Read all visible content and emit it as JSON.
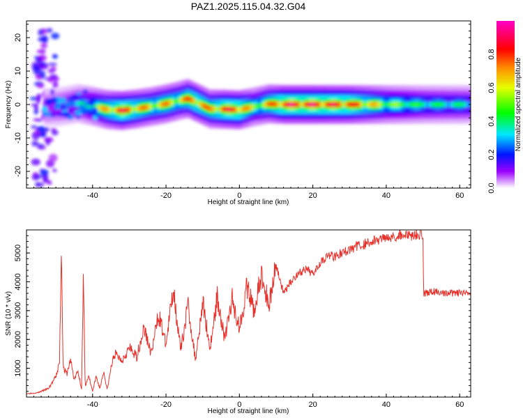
{
  "figure": {
    "title": "PAZ1.2025.115.04.32.G04"
  },
  "chart_data": [
    {
      "type": "heatmap",
      "xlabel": "Height of straight line (km)",
      "ylabel": "Frequency (Hz)",
      "xlim": [
        -58,
        63
      ],
      "ylim": [
        -25,
        25
      ],
      "xticks": [
        -40,
        -20,
        0,
        20,
        40,
        60
      ],
      "xtick_labels": [
        "-40",
        "-20",
        "0",
        "20",
        "40",
        "60"
      ],
      "yticks": [
        -20,
        -10,
        0,
        10,
        20
      ],
      "ytick_labels": [
        "-20",
        "-10",
        "0",
        "10",
        "20"
      ],
      "colorbar": {
        "label": "Normalized spectral amplitude",
        "range": [
          0,
          1
        ],
        "ticks": [
          0.0,
          0.2,
          0.4,
          0.6,
          0.8
        ],
        "tick_labels": [
          "0.0",
          "0.2",
          "0.4",
          "0.6",
          "0.8"
        ],
        "colormap": "rainbow (white-violet-blue-cyan-green-yellow-red-magenta)"
      },
      "ridge_frequency": {
        "x": [
          -52,
          -48,
          -44,
          -40,
          -36,
          -32,
          -28,
          -24,
          -20,
          -16,
          -14,
          -12,
          -8,
          -4,
          0,
          4,
          8,
          12,
          20,
          30,
          40,
          50,
          63
        ],
        "y": [
          -1.0,
          -0.5,
          0.3,
          -0.5,
          -1.5,
          -1.8,
          -1.3,
          -0.6,
          0.2,
          1.3,
          1.8,
          0.8,
          -1.3,
          -1.4,
          -1.6,
          -0.7,
          0.2,
          0.0,
          0.0,
          0.0,
          0.0,
          0.0,
          0.0
        ]
      },
      "ridge_amplitude": {
        "x": [
          -52,
          -48,
          -44,
          -40,
          -36,
          -32,
          -28,
          -24,
          -20,
          -16,
          -14,
          -12,
          -8,
          -4,
          0,
          4,
          8,
          12,
          20,
          30,
          40,
          50,
          63
        ],
        "values": [
          0.25,
          0.3,
          0.35,
          0.55,
          0.75,
          0.92,
          0.8,
          0.7,
          0.75,
          0.7,
          0.8,
          0.85,
          0.75,
          0.9,
          0.92,
          0.6,
          0.75,
          0.95,
          0.95,
          0.9,
          0.6,
          0.45,
          0.4
        ]
      },
      "grid": false
    },
    {
      "type": "line",
      "xlabel": "Height of straight line (km)",
      "ylabel": "SNR (10 * v/v)",
      "xlim": [
        -58,
        63
      ],
      "ylim": [
        0,
        5800
      ],
      "xticks": [
        -40,
        -20,
        0,
        20,
        40,
        60
      ],
      "xtick_labels": [
        "-40",
        "-20",
        "0",
        "20",
        "40",
        "60"
      ],
      "yticks": [
        1000,
        2000,
        3000,
        4000,
        5000
      ],
      "ytick_labels": [
        "1000",
        "2000",
        "3000",
        "4000",
        "5000"
      ],
      "series": [
        {
          "color": "#e8302a",
          "x": [
            -58,
            -55,
            -52,
            -50,
            -49,
            -48.5,
            -48,
            -47,
            -46,
            -45,
            -44,
            -43,
            -42.5,
            -42,
            -41,
            -40,
            -39,
            -38,
            -37,
            -36,
            -35,
            -34,
            -32,
            -30,
            -28,
            -26,
            -24,
            -22,
            -20,
            -18,
            -16,
            -14,
            -12,
            -10,
            -8,
            -6,
            -4,
            -2,
            0,
            2,
            4,
            6,
            8,
            10,
            12,
            14,
            16,
            18,
            20,
            22,
            24,
            26,
            28,
            30,
            32,
            34,
            36,
            38,
            40,
            42,
            44,
            46,
            48,
            50,
            50.2,
            52,
            54,
            56,
            58,
            60,
            63
          ],
          "y": [
            120,
            150,
            300,
            700,
            1200,
            5300,
            1000,
            800,
            1300,
            600,
            900,
            300,
            4000,
            400,
            700,
            200,
            700,
            300,
            900,
            250,
            1000,
            1500,
            1300,
            1700,
            1400,
            2400,
            1500,
            2900,
            1800,
            3800,
            1600,
            3200,
            1300,
            3300,
            1700,
            3500,
            2000,
            3400,
            2400,
            3800,
            3000,
            4200,
            3200,
            4600,
            3600,
            4000,
            4300,
            4400,
            4300,
            4700,
            4900,
            4900,
            5000,
            5100,
            5250,
            5300,
            5400,
            5450,
            5600,
            5550,
            5650,
            5600,
            5650,
            5650,
            3600,
            3650,
            3650,
            3600,
            3600,
            3600,
            3550
          ]
        }
      ],
      "grid": false
    }
  ]
}
